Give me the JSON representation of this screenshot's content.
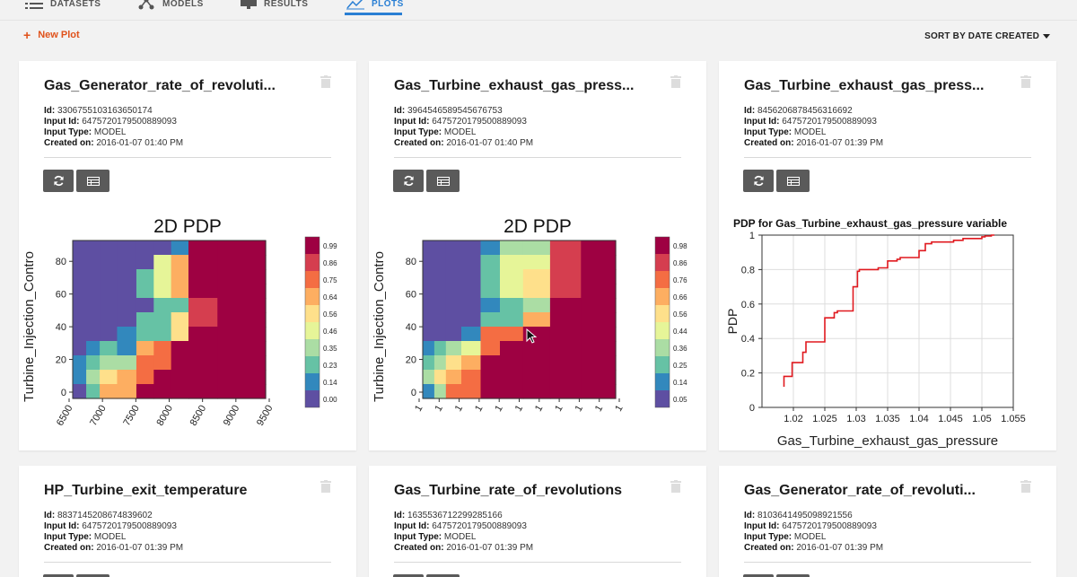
{
  "nav": {
    "items": [
      {
        "label": "DATASETS",
        "icon": "list-icon"
      },
      {
        "label": "MODELS",
        "icon": "nodes-icon"
      },
      {
        "label": "RESULTS",
        "icon": "monitor-icon"
      },
      {
        "label": "PLOTS",
        "icon": "chart-icon",
        "active": true
      }
    ]
  },
  "toolbar": {
    "new_plot": "New Plot",
    "sort_label": "SORT BY DATE CREATED"
  },
  "labels": {
    "id": "Id:",
    "input_id": "Input Id:",
    "input_type": "Input Type:",
    "created_on": "Created on:"
  },
  "cards": [
    {
      "title": "Gas_Generator_rate_of_revoluti...",
      "id": "3306755103163650174",
      "input_id": "6475720179500889093",
      "input_type": "MODEL",
      "created_on": "2016-01-07 01:40 PM"
    },
    {
      "title": "Gas_Turbine_exhaust_gas_press...",
      "id": "3964546589545676753",
      "input_id": "6475720179500889093",
      "input_type": "MODEL",
      "created_on": "2016-01-07 01:40 PM"
    },
    {
      "title": "Gas_Turbine_exhaust_gas_press...",
      "id": "8456206878456316692",
      "input_id": "6475720179500889093",
      "input_type": "MODEL",
      "created_on": "2016-01-07 01:39 PM"
    },
    {
      "title": "HP_Turbine_exit_temperature",
      "id": "8837145208674839602",
      "input_id": "6475720179500889093",
      "input_type": "MODEL",
      "created_on": "2016-01-07 01:39 PM"
    },
    {
      "title": "Gas_Turbine_rate_of_revolutions",
      "id": "1635536712299285166",
      "input_id": "6475720179500889093",
      "input_type": "MODEL",
      "created_on": "2016-01-07 01:39 PM"
    },
    {
      "title": "Gas_Generator_rate_of_revoluti...",
      "id": "8103641495098921556",
      "input_id": "6475720179500889093",
      "input_type": "MODEL",
      "created_on": "2016-01-07 01:39 PM"
    }
  ],
  "chart_data": [
    {
      "type": "heatmap",
      "title": "2D PDP",
      "ylabel": "Turbine_Injection_Contro",
      "xticks": [
        "6500",
        "7000",
        "7500",
        "8000",
        "8500",
        "9000",
        "9500"
      ],
      "yticks": [
        "0",
        "20",
        "40",
        "60",
        "80"
      ],
      "colorbar": [
        "0.99",
        "0.86",
        "0.75",
        "0.64",
        "0.56",
        "0.46",
        "0.35",
        "0.23",
        "0.14",
        "0.00"
      ]
    },
    {
      "type": "heatmap",
      "title": "2D PDP",
      "ylabel": "Turbine_Injection_Contro",
      "xticks": [
        "1",
        "1",
        "1",
        "1",
        "1",
        "1",
        "1",
        "1",
        "1",
        "1",
        "1"
      ],
      "yticks": [
        "0",
        "20",
        "40",
        "60",
        "80"
      ],
      "colorbar": [
        "0.98",
        "0.86",
        "0.76",
        "0.66",
        "0.56",
        "0.44",
        "0.36",
        "0.25",
        "0.14",
        "0.05"
      ]
    },
    {
      "type": "line",
      "title": "PDP for Gas_Turbine_exhaust_gas_pressure variable",
      "xlabel": "Gas_Turbine_exhaust_gas_pressure",
      "ylabel": "PDP",
      "xlim": [
        1.015,
        1.055
      ],
      "ylim": [
        0,
        1
      ],
      "xticks": [
        "1.02",
        "1.025",
        "1.03",
        "1.035",
        "1.04",
        "1.045",
        "1.05",
        "1.055"
      ],
      "yticks": [
        "0",
        "0.2",
        "0.4",
        "0.6",
        "0.8",
        "1"
      ],
      "grid": true,
      "series": [
        {
          "color": "#e0191f",
          "x": [
            1.0185,
            1.0185,
            1.019,
            1.0198,
            1.0198,
            1.0215,
            1.0215,
            1.022,
            1.022,
            1.025,
            1.025,
            1.0265,
            1.0265,
            1.027,
            1.027,
            1.0295,
            1.0295,
            1.0302,
            1.0302,
            1.0305,
            1.0305,
            1.0335,
            1.0335,
            1.035,
            1.035,
            1.0365,
            1.0365,
            1.037,
            1.037,
            1.04,
            1.04,
            1.041,
            1.041,
            1.042,
            1.042,
            1.0455,
            1.0455,
            1.047,
            1.047,
            1.05,
            1.05,
            1.0505,
            1.0505,
            1.0515,
            1.0515,
            1.052
          ],
          "y": [
            0.12,
            0.18,
            0.18,
            0.18,
            0.26,
            0.26,
            0.32,
            0.32,
            0.38,
            0.38,
            0.52,
            0.52,
            0.55,
            0.55,
            0.56,
            0.56,
            0.7,
            0.7,
            0.79,
            0.79,
            0.8,
            0.8,
            0.81,
            0.81,
            0.85,
            0.85,
            0.86,
            0.86,
            0.87,
            0.87,
            0.91,
            0.91,
            0.95,
            0.95,
            0.96,
            0.96,
            0.97,
            0.97,
            0.98,
            0.98,
            0.99,
            0.99,
            0.995,
            0.995,
            1.0,
            1.0
          ]
        }
      ]
    }
  ]
}
